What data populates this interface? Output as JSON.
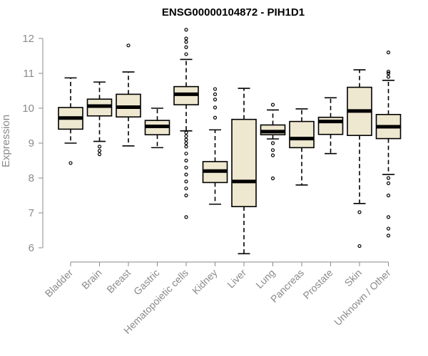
{
  "chart_data": {
    "type": "boxplot",
    "title": "ENSG00000104872 - PIH1D1",
    "ylabel": "Expression",
    "xlabel": "",
    "ylim": [
      6,
      12
    ],
    "yticks": [
      6,
      7,
      8,
      9,
      10,
      11,
      12
    ],
    "categories": [
      "Bladder",
      "Brain",
      "Breast",
      "Gastric",
      "Hematopoietic cells",
      "Kidney",
      "Liver",
      "Lung",
      "Pancreas",
      "Prostate",
      "Skin",
      "Unknown / Other"
    ],
    "boxes": [
      {
        "name": "Bladder",
        "whisker_low": 9.0,
        "q1": 9.4,
        "median": 9.72,
        "q3": 10.02,
        "whisker_high": 10.87,
        "outliers": [
          8.43
        ]
      },
      {
        "name": "Brain",
        "whisker_low": 9.05,
        "q1": 9.78,
        "median": 10.06,
        "q3": 10.26,
        "whisker_high": 10.75,
        "outliers": [
          8.68,
          8.78,
          8.9
        ]
      },
      {
        "name": "Breast",
        "whisker_low": 8.92,
        "q1": 9.75,
        "median": 10.03,
        "q3": 10.4,
        "whisker_high": 11.04,
        "outliers": [
          11.8
        ]
      },
      {
        "name": "Gastric",
        "whisker_low": 8.87,
        "q1": 9.24,
        "median": 9.48,
        "q3": 9.65,
        "whisker_high": 10.0,
        "outliers": []
      },
      {
        "name": "Hematopoietic cells",
        "whisker_low": 9.35,
        "q1": 10.1,
        "median": 10.4,
        "q3": 10.62,
        "whisker_high": 11.4,
        "outliers": [
          6.88,
          7.5,
          7.7,
          7.9,
          8.1,
          8.3,
          8.5,
          8.7,
          8.9,
          9.0,
          9.1,
          9.2,
          9.3,
          11.55,
          11.75,
          11.9,
          12.0,
          12.25
        ]
      },
      {
        "name": "Kidney",
        "whisker_low": 7.25,
        "q1": 7.87,
        "median": 8.2,
        "q3": 8.47,
        "whisker_high": 9.38,
        "outliers": [
          9.73,
          10.02,
          10.25,
          10.4,
          10.55
        ]
      },
      {
        "name": "Liver",
        "whisker_low": 5.83,
        "q1": 7.18,
        "median": 7.9,
        "q3": 9.68,
        "whisker_high": 10.57,
        "outliers": []
      },
      {
        "name": "Lung",
        "whisker_low": 9.12,
        "q1": 9.24,
        "median": 9.33,
        "q3": 9.52,
        "whisker_high": 9.95,
        "outliers": [
          7.99,
          8.65,
          8.8,
          9.0,
          10.1
        ]
      },
      {
        "name": "Pancreas",
        "whisker_low": 7.8,
        "q1": 8.87,
        "median": 9.13,
        "q3": 9.62,
        "whisker_high": 9.98,
        "outliers": []
      },
      {
        "name": "Prostate",
        "whisker_low": 8.7,
        "q1": 9.25,
        "median": 9.62,
        "q3": 9.74,
        "whisker_high": 10.3,
        "outliers": []
      },
      {
        "name": "Skin",
        "whisker_low": 7.27,
        "q1": 9.22,
        "median": 9.92,
        "q3": 10.6,
        "whisker_high": 11.1,
        "outliers": [
          6.05,
          7.02
        ]
      },
      {
        "name": "Unknown / Other",
        "whisker_low": 8.1,
        "q1": 9.13,
        "median": 9.47,
        "q3": 9.82,
        "whisker_high": 10.8,
        "outliers": [
          6.35,
          6.55,
          6.88,
          7.5,
          7.85,
          8.0,
          10.9,
          11.0,
          11.05,
          11.6
        ]
      }
    ],
    "grid": false,
    "legend": "none",
    "colors": {
      "box_fill": "#efe8d0",
      "box_stroke": "#000000",
      "axis": "#8a8a8a",
      "label": "#8a8a8a"
    }
  }
}
